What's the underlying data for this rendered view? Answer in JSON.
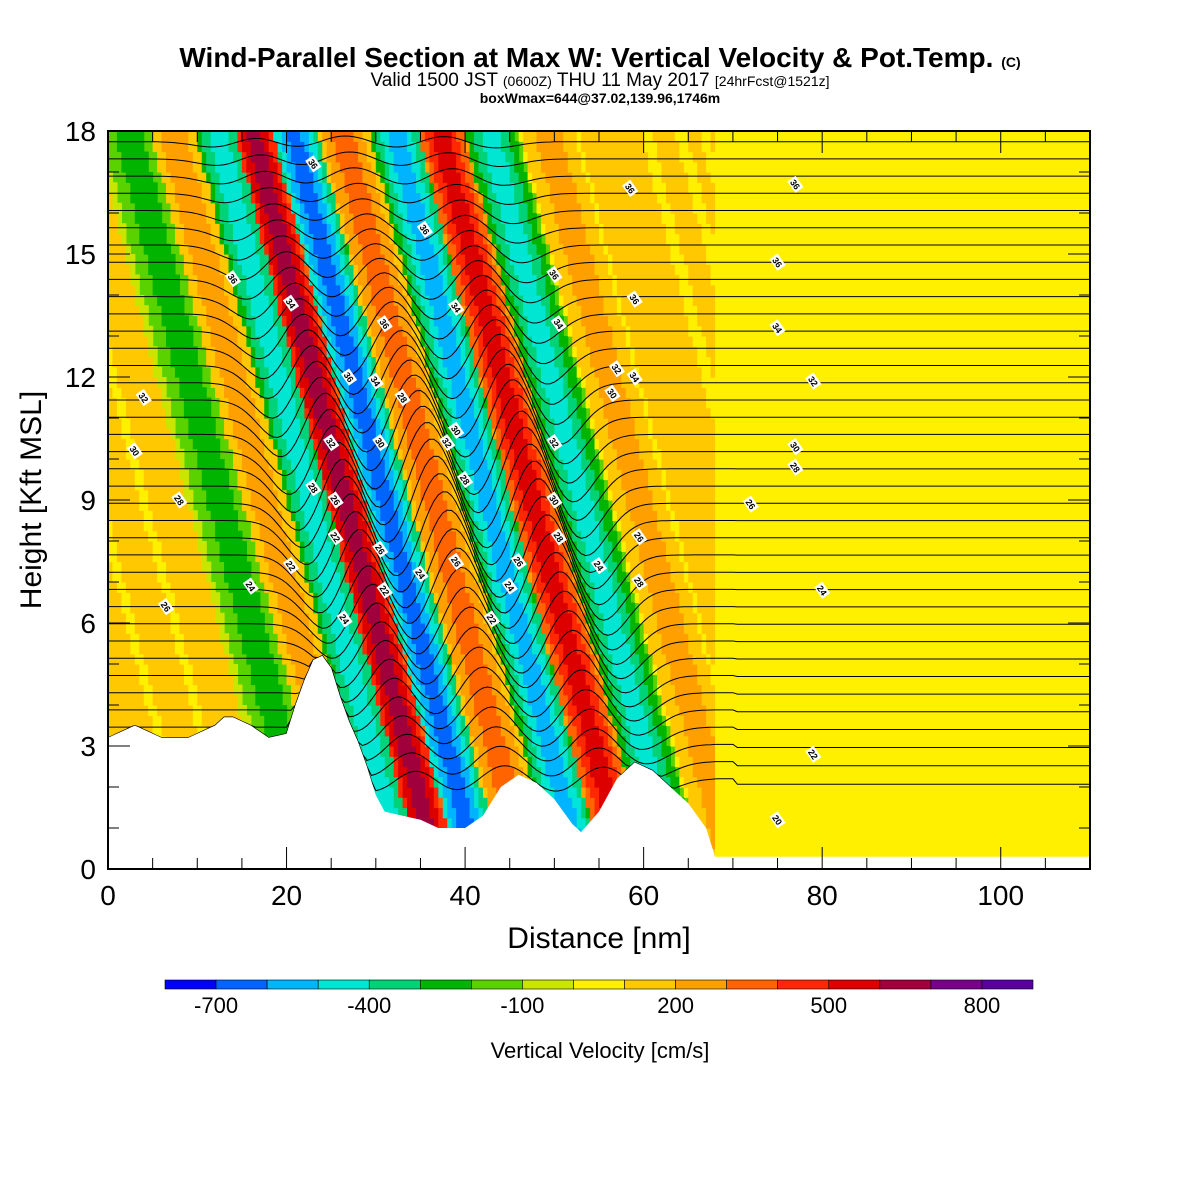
{
  "title": {
    "main": "Wind-Parallel Section at Max W: Vertical Velocity & Pot.Temp.",
    "copyright": "(C)",
    "valid_prefix": "Valid 1500 JST",
    "valid_utc": "(0600Z)",
    "valid_date": "THU 11 May 2017",
    "valid_fcst": "[24hrFcst@1521z]",
    "box": "boxWmax=644@37.02,139.96,1746m"
  },
  "chart_data": {
    "type": "heatmap",
    "xlabel": "Distance [nm]",
    "ylabel": "Height [Kft MSL]",
    "xlim": [
      0,
      110
    ],
    "ylim": [
      0,
      18
    ],
    "x_ticks": [
      0,
      20,
      40,
      60,
      80,
      100
    ],
    "y_ticks": [
      0,
      3,
      6,
      9,
      12,
      15,
      18
    ],
    "colorbar": {
      "label": "Vertical Velocity [cm/s]",
      "tick_values": [
        -700,
        -400,
        -100,
        200,
        500,
        800
      ],
      "tick_labels": [
        "-700",
        "-400",
        "-100",
        "200",
        "500",
        "800"
      ],
      "levels": [
        -800,
        -700,
        -600,
        -500,
        -400,
        -300,
        -200,
        -100,
        0,
        100,
        200,
        300,
        400,
        500,
        600,
        700,
        800,
        900
      ],
      "colors": [
        "#0000ff",
        "#0064ff",
        "#00b4ff",
        "#00e6d2",
        "#00d278",
        "#00b400",
        "#5ad200",
        "#c8e600",
        "#fff000",
        "#ffc800",
        "#ffa000",
        "#ff6400",
        "#ff2800",
        "#dc0000",
        "#a0003c",
        "#78008c",
        "#5a00a0"
      ]
    },
    "wave_bands": [
      {
        "x": 5,
        "w": 150
      },
      {
        "x": 16,
        "w": -250
      },
      {
        "x": 21,
        "w": 250
      },
      {
        "x": 26,
        "w": -450
      },
      {
        "x": 30,
        "w": 650
      },
      {
        "x": 34.5,
        "w": -650
      },
      {
        "x": 40,
        "w": 350
      },
      {
        "x": 46,
        "w": -550
      },
      {
        "x": 51,
        "w": 550
      },
      {
        "x": 56.5,
        "w": -450
      },
      {
        "x": 63,
        "w": 250
      },
      {
        "x": 70,
        "w": -50
      },
      {
        "x": 76,
        "w": 120
      },
      {
        "x": 83,
        "w": 150
      },
      {
        "x": 92,
        "w": 150
      },
      {
        "x": 100,
        "w": 100
      }
    ],
    "terrain": {
      "x": [
        0,
        3,
        6,
        9,
        12,
        13,
        14,
        16,
        18,
        20,
        21,
        22,
        23,
        24,
        25,
        26,
        27,
        28,
        29,
        30,
        31,
        33,
        35,
        37,
        40,
        42,
        44,
        46,
        48,
        50,
        52,
        53,
        55,
        57,
        59,
        61,
        63,
        65,
        67,
        68,
        70,
        110
      ],
      "y": [
        3.2,
        3.5,
        3.2,
        3.2,
        3.5,
        3.7,
        3.7,
        3.5,
        3.2,
        3.3,
        4.0,
        4.6,
        5.1,
        5.2,
        4.9,
        4.2,
        3.6,
        3.1,
        2.5,
        1.8,
        1.4,
        1.3,
        1.2,
        1.0,
        1.0,
        1.3,
        2.0,
        2.3,
        2.1,
        1.7,
        1.1,
        0.9,
        1.4,
        2.2,
        2.6,
        2.4,
        2.0,
        1.6,
        1.0,
        0.3,
        0.3,
        0.3
      ]
    },
    "theta_labels": [
      {
        "x": 23,
        "y": 17.2,
        "text": "36"
      },
      {
        "x": 14,
        "y": 14.4,
        "text": "36"
      },
      {
        "x": 20.5,
        "y": 13.8,
        "text": "34"
      },
      {
        "x": 4,
        "y": 11.5,
        "text": "32"
      },
      {
        "x": 3,
        "y": 10.2,
        "text": "30"
      },
      {
        "x": 8,
        "y": 9.0,
        "text": "28"
      },
      {
        "x": 6.5,
        "y": 6.4,
        "text": "26"
      },
      {
        "x": 16,
        "y": 6.9,
        "text": "24"
      },
      {
        "x": 20.5,
        "y": 7.4,
        "text": "22"
      },
      {
        "x": 27,
        "y": 12.0,
        "text": "36"
      },
      {
        "x": 25,
        "y": 10.4,
        "text": "32"
      },
      {
        "x": 23,
        "y": 9.3,
        "text": "28"
      },
      {
        "x": 25.5,
        "y": 9.0,
        "text": "26"
      },
      {
        "x": 25.5,
        "y": 8.1,
        "text": "22"
      },
      {
        "x": 26.5,
        "y": 6.1,
        "text": "24"
      },
      {
        "x": 31,
        "y": 13.3,
        "text": "36"
      },
      {
        "x": 30,
        "y": 11.9,
        "text": "34"
      },
      {
        "x": 33,
        "y": 11.5,
        "text": "28"
      },
      {
        "x": 30.5,
        "y": 10.4,
        "text": "30"
      },
      {
        "x": 30.5,
        "y": 7.8,
        "text": "26"
      },
      {
        "x": 31,
        "y": 6.8,
        "text": "22"
      },
      {
        "x": 35,
        "y": 7.2,
        "text": "24"
      },
      {
        "x": 35.5,
        "y": 15.6,
        "text": "36"
      },
      {
        "x": 39,
        "y": 13.7,
        "text": "34"
      },
      {
        "x": 39,
        "y": 10.7,
        "text": "30"
      },
      {
        "x": 38,
        "y": 10.4,
        "text": "32"
      },
      {
        "x": 40,
        "y": 9.5,
        "text": "28"
      },
      {
        "x": 39,
        "y": 7.5,
        "text": "26"
      },
      {
        "x": 43,
        "y": 6.1,
        "text": "22"
      },
      {
        "x": 46,
        "y": 7.5,
        "text": "26"
      },
      {
        "x": 45,
        "y": 6.9,
        "text": "24"
      },
      {
        "x": 50,
        "y": 14.5,
        "text": "36"
      },
      {
        "x": 50.5,
        "y": 13.3,
        "text": "34"
      },
      {
        "x": 50,
        "y": 10.4,
        "text": "32"
      },
      {
        "x": 50,
        "y": 9.0,
        "text": "30"
      },
      {
        "x": 50.5,
        "y": 8.1,
        "text": "28"
      },
      {
        "x": 55,
        "y": 7.4,
        "text": "24"
      },
      {
        "x": 58.5,
        "y": 16.6,
        "text": "36"
      },
      {
        "x": 59,
        "y": 13.9,
        "text": "36"
      },
      {
        "x": 57,
        "y": 12.2,
        "text": "32"
      },
      {
        "x": 59,
        "y": 12.0,
        "text": "34"
      },
      {
        "x": 56.5,
        "y": 11.6,
        "text": "30"
      },
      {
        "x": 59.5,
        "y": 8.1,
        "text": "26"
      },
      {
        "x": 59.5,
        "y": 7.0,
        "text": "28"
      },
      {
        "x": 77,
        "y": 16.7,
        "text": "36"
      },
      {
        "x": 75,
        "y": 14.8,
        "text": "36"
      },
      {
        "x": 75,
        "y": 13.2,
        "text": "34"
      },
      {
        "x": 79,
        "y": 11.9,
        "text": "32"
      },
      {
        "x": 77,
        "y": 10.3,
        "text": "30"
      },
      {
        "x": 77,
        "y": 9.8,
        "text": "28"
      },
      {
        "x": 72,
        "y": 8.9,
        "text": "26"
      },
      {
        "x": 80,
        "y": 6.8,
        "text": "24"
      },
      {
        "x": 79,
        "y": 2.8,
        "text": "22"
      },
      {
        "x": 75,
        "y": 1.2,
        "text": "20"
      }
    ]
  }
}
